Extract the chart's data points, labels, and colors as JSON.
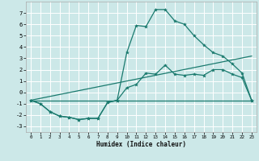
{
  "xlabel": "Humidex (Indice chaleur)",
  "bg_color": "#cce8e8",
  "grid_color": "#ffffff",
  "line_color": "#1a7a6e",
  "x_ticks": [
    0,
    1,
    2,
    3,
    4,
    5,
    6,
    7,
    8,
    9,
    10,
    11,
    12,
    13,
    14,
    15,
    16,
    17,
    18,
    19,
    20,
    21,
    22,
    23
  ],
  "ylim": [
    -3.5,
    8.0
  ],
  "xlim": [
    -0.5,
    23.5
  ],
  "yticks": [
    -3,
    -2,
    -1,
    0,
    1,
    2,
    3,
    4,
    5,
    6,
    7
  ],
  "series1_x": [
    0,
    1,
    2,
    3,
    4,
    5,
    6,
    7,
    8,
    9,
    10,
    11,
    12,
    13,
    14,
    15,
    16,
    17,
    18,
    19,
    20,
    21,
    22,
    23
  ],
  "series1_y": [
    -0.7,
    -1.0,
    -1.7,
    -2.1,
    -2.2,
    -2.4,
    -2.3,
    -2.3,
    -0.9,
    -0.7,
    3.5,
    5.9,
    5.8,
    7.3,
    7.3,
    6.3,
    6.0,
    5.0,
    4.2,
    3.5,
    3.2,
    2.5,
    1.7,
    -0.7
  ],
  "series2_x": [
    0,
    1,
    2,
    3,
    4,
    5,
    6,
    7,
    8,
    9,
    10,
    11,
    12,
    13,
    14,
    15,
    16,
    17,
    18,
    19,
    20,
    21,
    22,
    23
  ],
  "series2_y": [
    -0.7,
    -1.0,
    -1.7,
    -2.1,
    -2.2,
    -2.4,
    -2.3,
    -2.3,
    -0.9,
    -0.7,
    0.4,
    0.7,
    1.7,
    1.6,
    2.4,
    1.6,
    1.5,
    1.6,
    1.5,
    2.0,
    2.0,
    1.6,
    1.3,
    -0.7
  ],
  "series3_x": [
    0,
    23
  ],
  "series3_y": [
    -0.7,
    -0.7
  ],
  "series4_x": [
    0,
    23
  ],
  "series4_y": [
    -0.7,
    3.2
  ]
}
